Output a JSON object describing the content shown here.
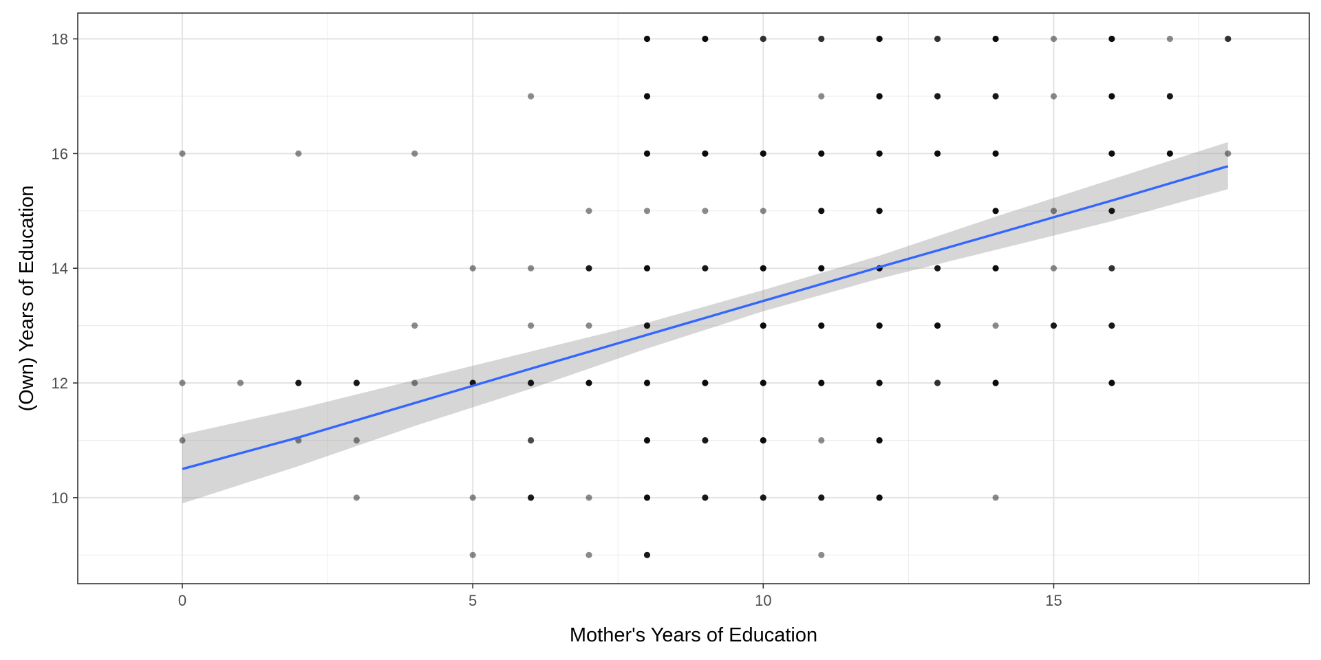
{
  "chart_data": {
    "type": "scatter",
    "title": "",
    "xlabel": "Mother's Years of Education",
    "ylabel": "(Own) Years of Education",
    "xlim": [
      -1.8,
      19.4
    ],
    "ylim": [
      8.5,
      18.45
    ],
    "x_ticks": [
      0,
      5,
      10,
      15
    ],
    "y_ticks": [
      10,
      12,
      14,
      16,
      18
    ],
    "x_tick_labels": [
      "0",
      "5",
      "10",
      "15"
    ],
    "y_tick_labels": [
      "10",
      "12",
      "14",
      "16",
      "18"
    ],
    "grid": true,
    "legend": "none",
    "point_color": "#000000",
    "points": [
      [
        0,
        16
      ],
      [
        0,
        12
      ],
      [
        0,
        11
      ],
      [
        1,
        12
      ],
      [
        2,
        16
      ],
      [
        2,
        12
      ],
      [
        2,
        11
      ],
      [
        3,
        12
      ],
      [
        3,
        11
      ],
      [
        3,
        10
      ],
      [
        4,
        16
      ],
      [
        4,
        13
      ],
      [
        4,
        12
      ],
      [
        5,
        14
      ],
      [
        5,
        12
      ],
      [
        5,
        10
      ],
      [
        5,
        9
      ],
      [
        6,
        17
      ],
      [
        6,
        14
      ],
      [
        6,
        13
      ],
      [
        6,
        12
      ],
      [
        6,
        11
      ],
      [
        6,
        10
      ],
      [
        7,
        15
      ],
      [
        7,
        14
      ],
      [
        7,
        13
      ],
      [
        7,
        12
      ],
      [
        7,
        10
      ],
      [
        7,
        9
      ],
      [
        8,
        18
      ],
      [
        8,
        17
      ],
      [
        8,
        16
      ],
      [
        8,
        15
      ],
      [
        8,
        14
      ],
      [
        8,
        13
      ],
      [
        8,
        12
      ],
      [
        8,
        11
      ],
      [
        8,
        10
      ],
      [
        8,
        9
      ],
      [
        9,
        18
      ],
      [
        9,
        16
      ],
      [
        9,
        15
      ],
      [
        9,
        14
      ],
      [
        9,
        12
      ],
      [
        9,
        11
      ],
      [
        9,
        10
      ],
      [
        10,
        18
      ],
      [
        10,
        16
      ],
      [
        10,
        15
      ],
      [
        10,
        14
      ],
      [
        10,
        13
      ],
      [
        10,
        12
      ],
      [
        10,
        11
      ],
      [
        10,
        10
      ],
      [
        11,
        18
      ],
      [
        11,
        17
      ],
      [
        11,
        16
      ],
      [
        11,
        15
      ],
      [
        11,
        14
      ],
      [
        11,
        13
      ],
      [
        11,
        12
      ],
      [
        11,
        11
      ],
      [
        11,
        10
      ],
      [
        11,
        9
      ],
      [
        12,
        18
      ],
      [
        12,
        17
      ],
      [
        12,
        16
      ],
      [
        12,
        15
      ],
      [
        12,
        14
      ],
      [
        12,
        13
      ],
      [
        12,
        12
      ],
      [
        12,
        11
      ],
      [
        12,
        10
      ],
      [
        13,
        18
      ],
      [
        13,
        17
      ],
      [
        13,
        16
      ],
      [
        13,
        14
      ],
      [
        13,
        13
      ],
      [
        13,
        12
      ],
      [
        14,
        18
      ],
      [
        14,
        17
      ],
      [
        14,
        16
      ],
      [
        14,
        15
      ],
      [
        14,
        14
      ],
      [
        14,
        13
      ],
      [
        14,
        12
      ],
      [
        14,
        10
      ],
      [
        15,
        18
      ],
      [
        15,
        17
      ],
      [
        15,
        15
      ],
      [
        15,
        14
      ],
      [
        15,
        13
      ],
      [
        16,
        18
      ],
      [
        16,
        17
      ],
      [
        16,
        16
      ],
      [
        16,
        15
      ],
      [
        16,
        14
      ],
      [
        16,
        13
      ],
      [
        16,
        12
      ],
      [
        17,
        18
      ],
      [
        17,
        17
      ],
      [
        17,
        16
      ],
      [
        18,
        18
      ],
      [
        18,
        16
      ]
    ],
    "point_opacity": [
      0.45,
      0.45,
      0.45,
      0.45,
      0.45,
      0.9,
      0.45,
      0.9,
      0.45,
      0.45,
      0.45,
      0.45,
      0.45,
      0.45,
      0.9,
      0.45,
      0.45,
      0.45,
      0.45,
      0.45,
      0.9,
      0.7,
      0.9,
      0.45,
      0.9,
      0.45,
      0.95,
      0.45,
      0.45,
      0.95,
      0.95,
      0.95,
      0.45,
      0.95,
      0.9,
      0.95,
      0.95,
      0.95,
      0.9,
      0.95,
      0.95,
      0.45,
      0.9,
      0.95,
      0.9,
      0.9,
      0.8,
      0.95,
      0.45,
      0.95,
      0.95,
      0.95,
      0.95,
      0.9,
      0.8,
      0.45,
      0.95,
      0.95,
      0.95,
      0.95,
      0.95,
      0.45,
      0.9,
      0.45,
      0.95,
      0.95,
      0.95,
      0.95,
      0.95,
      0.95,
      0.95,
      0.95,
      0.95,
      0.8,
      0.9,
      0.95,
      0.9,
      0.95,
      0.8,
      0.95,
      0.9,
      0.95,
      0.95,
      0.95,
      0.45,
      0.95,
      0.45,
      0.45,
      0.45,
      0.45,
      0.45,
      0.9,
      0.95,
      0.95,
      0.95,
      0.9,
      0.8,
      0.9,
      0.95,
      0.45,
      0.9,
      0.95,
      0.8,
      0.45
    ],
    "fit_line": {
      "method": "linear",
      "color": "#3366FF",
      "ribbon_color": "#999999",
      "x": [
        0,
        2,
        4,
        6,
        8,
        10,
        12,
        14,
        16,
        18
      ],
      "y": [
        10.5,
        11.05,
        11.65,
        12.25,
        12.84,
        13.43,
        14.02,
        14.6,
        15.18,
        15.78
      ],
      "ci_upper": [
        11.1,
        11.55,
        12.05,
        12.55,
        13.05,
        13.62,
        14.22,
        14.9,
        15.55,
        16.2
      ],
      "ci_lower": [
        9.9,
        10.55,
        11.25,
        11.9,
        12.6,
        13.25,
        13.82,
        14.32,
        14.82,
        15.38
      ]
    }
  }
}
